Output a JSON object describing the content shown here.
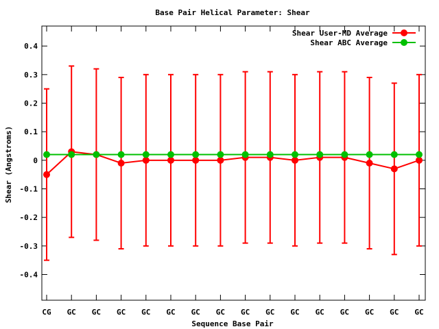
{
  "chart_data": {
    "type": "line",
    "title": "Base Pair Helical Parameter: Shear",
    "xlabel": "Sequence Base Pair",
    "ylabel": "Shear (Angstroms)",
    "categories": [
      "CG",
      "GC",
      "GC",
      "GC",
      "GC",
      "GC",
      "GC",
      "GC",
      "GC",
      "GC",
      "GC",
      "GC",
      "GC",
      "GC",
      "GC",
      "GC"
    ],
    "ylim": [
      -0.49,
      0.47
    ],
    "yticks": [
      0.4,
      0.3,
      0.2,
      0.1,
      0,
      -0.1,
      -0.2,
      -0.3,
      -0.4
    ],
    "ytick_labels": [
      "0.4",
      "0.3",
      "0.2",
      "0.1",
      "0",
      "-0.1",
      "-0.2",
      "-0.3",
      "-0.4"
    ],
    "grid": false,
    "legend_position": "top-right",
    "series": [
      {
        "name": "Shear User-MD Average",
        "color": "#ff0000",
        "values": [
          -0.05,
          0.03,
          0.02,
          -0.01,
          0.0,
          0.0,
          0.0,
          0.0,
          0.01,
          0.01,
          0.0,
          0.01,
          0.01,
          -0.01,
          -0.03,
          0.0
        ],
        "error_low": [
          -0.35,
          -0.27,
          -0.28,
          -0.31,
          -0.3,
          -0.3,
          -0.3,
          -0.3,
          -0.29,
          -0.29,
          -0.3,
          -0.29,
          -0.29,
          -0.31,
          -0.33,
          -0.3
        ],
        "error_high": [
          0.25,
          0.33,
          0.32,
          0.29,
          0.3,
          0.3,
          0.3,
          0.3,
          0.31,
          0.31,
          0.3,
          0.31,
          0.31,
          0.29,
          0.27,
          0.3
        ]
      },
      {
        "name": "Shear ABC Average",
        "color": "#00c000",
        "values": [
          0.02,
          0.02,
          0.02,
          0.02,
          0.02,
          0.02,
          0.02,
          0.02,
          0.02,
          0.02,
          0.02,
          0.02,
          0.02,
          0.02,
          0.02,
          0.02
        ]
      }
    ]
  }
}
